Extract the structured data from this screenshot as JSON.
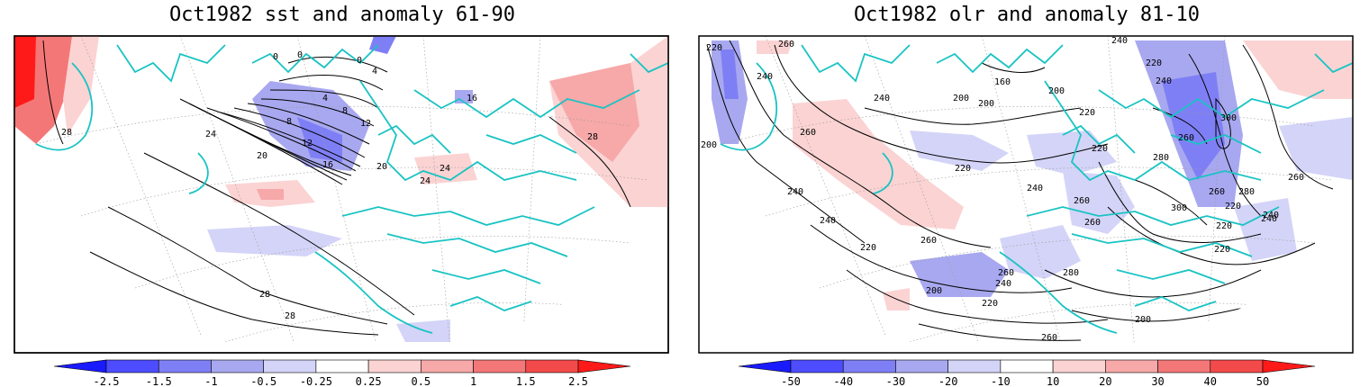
{
  "panels": [
    {
      "title": "Oct1982 sst and anomaly 61-90",
      "colorbar": {
        "labels": [
          "-2.5",
          "-1.5",
          "-1",
          "-0.5",
          "-0.25",
          "0.25",
          "0.5",
          "1",
          "1.5",
          "2.5"
        ],
        "colors": [
          "#1a1aff",
          "#4d4dff",
          "#7f7ff5",
          "#a8a8f0",
          "#d4d4f8",
          "#ffffff",
          "#fbd3d3",
          "#f7a8a8",
          "#f47777",
          "#f24a4a",
          "#ff1a1a"
        ]
      },
      "contour_labels": [
        "0",
        "0",
        "0",
        "4",
        "4",
        "8",
        "8",
        "12",
        "12",
        "16",
        "16",
        "20",
        "20",
        "24",
        "24",
        "24",
        "28",
        "28",
        "28",
        "28"
      ]
    },
    {
      "title": "Oct1982 olr and anomaly 81-10",
      "colorbar": {
        "labels": [
          "-50",
          "-40",
          "-30",
          "-20",
          "-10",
          "10",
          "20",
          "30",
          "40",
          "50"
        ],
        "colors": [
          "#1a1aff",
          "#4d4dff",
          "#7f7ff5",
          "#a8a8f0",
          "#d4d4f8",
          "#ffffff",
          "#fbd3d3",
          "#f7a8a8",
          "#f47777",
          "#f24a4a",
          "#ff1a1a"
        ]
      },
      "contour_labels": [
        "220",
        "240",
        "260",
        "200",
        "200",
        "160",
        "200",
        "240",
        "240",
        "240",
        "220",
        "220",
        "300",
        "260",
        "260",
        "200",
        "220",
        "240",
        "220",
        "240",
        "260",
        "280",
        "260",
        "240",
        "260",
        "300",
        "260",
        "240",
        "260",
        "220",
        "280",
        "200",
        "220",
        "240",
        "260",
        "260",
        "280",
        "200",
        "220",
        "240",
        "220",
        "220"
      ]
    }
  ]
}
